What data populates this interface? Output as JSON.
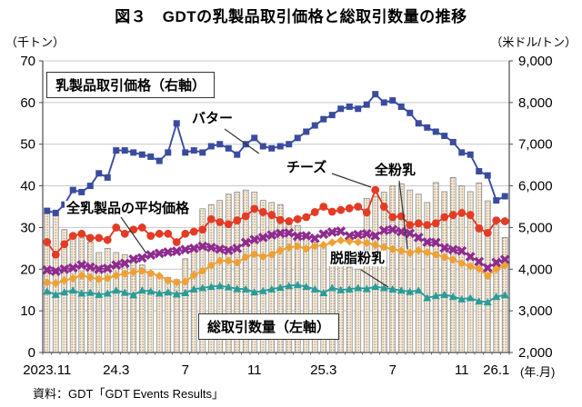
{
  "title": "図３　GDTの乳製品取引価格と総取引数量の推移",
  "axes": {
    "left_unit": "（千トン）",
    "right_unit": "（米ドル/トン）",
    "x_unit": "(年.月)",
    "left_ticks": [
      "70",
      "60",
      "50",
      "40",
      "30",
      "20",
      "10",
      "0"
    ],
    "right_ticks": [
      "9,000",
      "8,000",
      "7,000",
      "6,000",
      "5,000",
      "4,000",
      "3,000",
      "2,000"
    ],
    "x_tick_labels": [
      "2023.11",
      "24.3",
      "7",
      "11",
      "25.3",
      "7",
      "11",
      "26.1"
    ],
    "x_tick_positions": [
      1,
      9,
      17,
      25,
      33,
      41,
      49,
      53
    ]
  },
  "annotations": {
    "price_axis_box": "乳製品取引価格（右軸）",
    "volume_axis_box": "総取引数量（左軸）",
    "butter_label": "バター",
    "cheese_label": "チーズ",
    "wmp_label": "全粉乳",
    "average_label": "全乳製品の平均価格",
    "smp_label": "脱脂粉乳"
  },
  "source": "資料：GDT「GDT Events Results」",
  "colors": {
    "butter": "#3A4B9F",
    "cheese": "#E43B24",
    "average": "#8E2C8E",
    "wmp": "#F0A132",
    "smp": "#2B9C97",
    "bar_fill": "#F4EBDC",
    "bar_dot": "#B08C62",
    "bar_stroke": "#8C8C8C",
    "grid": "#C8C8C8",
    "axis": "#4D4D4D"
  },
  "chart_data": {
    "type": "combo-bar-line",
    "left_axis_range": [
      0,
      70
    ],
    "right_axis_range": [
      2000,
      9000
    ],
    "grid": "horizontal",
    "x": {
      "dates": [
        "23.11",
        "23.11",
        "23.12",
        "23.12",
        "24.1",
        "24.1",
        "24.2",
        "24.2",
        "24.3",
        "24.3",
        "24.4",
        "24.4",
        "24.5",
        "24.5",
        "24.6",
        "24.6",
        "24.7",
        "24.7",
        "24.8",
        "24.8",
        "24.9",
        "24.9",
        "24.10",
        "24.10",
        "24.11",
        "24.11",
        "24.12",
        "24.12",
        "25.1",
        "25.1",
        "25.2",
        "25.2",
        "25.3",
        "25.3",
        "25.4",
        "25.4",
        "25.5",
        "25.5",
        "25.6",
        "25.6",
        "25.7",
        "25.7",
        "25.8",
        "25.8",
        "25.9",
        "25.9",
        "25.10",
        "25.10",
        "25.11",
        "25.11",
        "25.12",
        "25.12",
        "26.1",
        "26.1"
      ]
    },
    "bars": {
      "name": "総取引数量",
      "axis": "left",
      "unit": "千トン",
      "values": [
        33.5,
        33,
        29.5,
        27.5,
        28.5,
        26.5,
        24,
        25,
        24,
        23.5,
        22.5,
        21,
        19.5,
        18.5,
        18,
        17.5,
        22.5,
        25,
        34.5,
        35.5,
        36.5,
        38,
        38.5,
        39,
        38.5,
        36.5,
        36,
        35.5,
        32,
        30.5,
        28.5,
        26.5,
        25.5,
        23,
        24,
        20.5,
        20,
        37,
        37.5,
        38.5,
        40,
        40.5,
        39,
        38,
        36,
        40.8,
        38.6,
        42,
        40,
        38.6,
        40.7,
        36.4,
        30.6,
        27.6
      ]
    },
    "series": [
      {
        "name": "バター",
        "axis": "right",
        "unit": "米ドル/トン",
        "color": "#3A4B9F",
        "marker": "square",
        "values": [
          5400,
          5350,
          5550,
          5900,
          5850,
          6000,
          6300,
          6200,
          6850,
          6850,
          6800,
          6750,
          6700,
          6600,
          6800,
          7500,
          6800,
          6850,
          6800,
          6950,
          7000,
          6900,
          6750,
          7000,
          7150,
          6950,
          6900,
          6950,
          7000,
          7150,
          7300,
          7450,
          7600,
          7700,
          7850,
          7900,
          7850,
          7950,
          8200,
          8000,
          8050,
          7900,
          7750,
          7500,
          7400,
          7300,
          7200,
          7050,
          6800,
          6750,
          6350,
          6250,
          5650,
          5750
        ]
      },
      {
        "name": "チーズ",
        "axis": "right",
        "unit": "米ドル/トン",
        "color": "#E43B24",
        "marker": "circle",
        "values": [
          4650,
          4350,
          4600,
          4800,
          4850,
          4750,
          4750,
          4700,
          5000,
          4850,
          4950,
          5000,
          4800,
          4850,
          4850,
          4650,
          4850,
          4900,
          4950,
          5200,
          5130,
          5080,
          5170,
          5270,
          5450,
          5370,
          5300,
          5180,
          5150,
          5200,
          5250,
          5370,
          5500,
          5380,
          5420,
          5460,
          5500,
          5360,
          5900,
          5500,
          5250,
          5270,
          5060,
          5100,
          5060,
          5100,
          5250,
          5300,
          5350,
          5300,
          4980,
          4870,
          5170,
          5150
        ]
      },
      {
        "name": "全乳製品の平均価格",
        "axis": "right",
        "unit": "米ドル/トン",
        "color": "#8E2C8E",
        "marker": "x",
        "values": [
          3980,
          3950,
          4000,
          4030,
          4100,
          4050,
          4000,
          4020,
          4100,
          4140,
          4240,
          4270,
          4340,
          4380,
          4410,
          4430,
          4470,
          4500,
          4550,
          4520,
          4480,
          4450,
          4500,
          4640,
          4710,
          4760,
          4820,
          4860,
          4870,
          4790,
          4800,
          4740,
          4840,
          4890,
          4910,
          4800,
          4830,
          4850,
          4800,
          4930,
          4950,
          4900,
          4860,
          4760,
          4650,
          4640,
          4510,
          4470,
          4440,
          4300,
          4180,
          4030,
          4160,
          4230
        ]
      },
      {
        "name": "全粉乳",
        "axis": "right",
        "unit": "米ドル/トン",
        "color": "#F0A132",
        "marker": "diamond",
        "values": [
          3680,
          3660,
          3730,
          3780,
          3850,
          3800,
          3760,
          3780,
          3850,
          3890,
          3930,
          3960,
          3900,
          3840,
          3730,
          3680,
          3700,
          3860,
          3960,
          4090,
          4200,
          4200,
          4160,
          4290,
          4360,
          4300,
          4350,
          4450,
          4520,
          4550,
          4490,
          4550,
          4580,
          4640,
          4690,
          4670,
          4650,
          4630,
          4580,
          4530,
          4480,
          4440,
          4390,
          4450,
          4400,
          4350,
          4290,
          4230,
          4140,
          4070,
          4010,
          3840,
          4000,
          4090
        ]
      },
      {
        "name": "脱脂粉乳",
        "axis": "right",
        "unit": "米ドル/トン",
        "color": "#2B9C97",
        "marker": "triangle",
        "values": [
          3470,
          3390,
          3450,
          3490,
          3420,
          3440,
          3390,
          3420,
          3490,
          3440,
          3380,
          3490,
          3470,
          3420,
          3450,
          3400,
          3430,
          3520,
          3550,
          3580,
          3600,
          3570,
          3530,
          3520,
          3450,
          3480,
          3520,
          3560,
          3600,
          3620,
          3580,
          3520,
          3430,
          3550,
          3500,
          3520,
          3550,
          3530,
          3580,
          3550,
          3520,
          3490,
          3460,
          3490,
          3310,
          3360,
          3390,
          3340,
          3280,
          3310,
          3230,
          3210,
          3340,
          3380
        ]
      }
    ]
  }
}
